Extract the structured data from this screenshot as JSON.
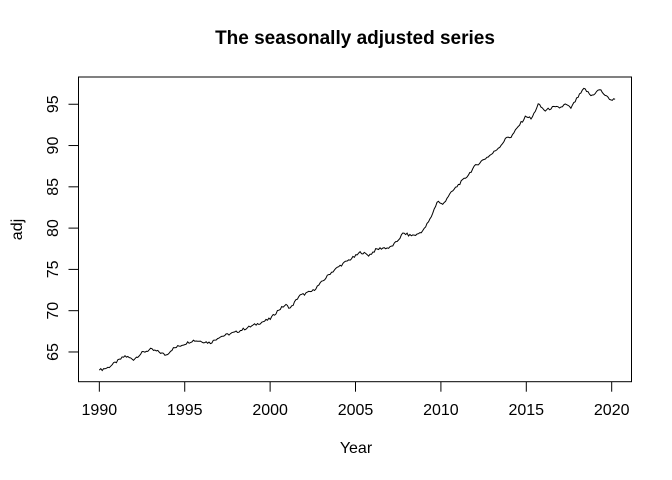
{
  "figure": {
    "title": "The seasonally adjusted series",
    "xlabel": "Year",
    "ylabel": "adj"
  },
  "chart_data": {
    "type": "line",
    "title": "The seasonally adjusted series",
    "xlabel": "Year",
    "ylabel": "adj",
    "x_ticks": [
      1990,
      1995,
      2000,
      2005,
      2010,
      2015,
      2020
    ],
    "y_ticks": [
      65,
      70,
      75,
      80,
      85,
      90,
      95
    ],
    "xlim": [
      1988.78,
      2021.16
    ],
    "ylim": [
      61.4,
      98.3
    ],
    "grid": false,
    "legend": false,
    "line_color": "#000000",
    "frame_color": "#000000",
    "background": "#ffffff",
    "resolution": "monthly",
    "noise_amplitude": 0.16,
    "series": [
      {
        "name": "adj",
        "x": [
          1990.0,
          1990.5,
          1991.0,
          1991.5,
          1992.0,
          1992.5,
          1993.0,
          1993.5,
          1993.9,
          1994.3,
          1995.0,
          1995.5,
          1996.0,
          1996.5,
          1997.0,
          1997.5,
          1998.0,
          1998.5,
          1999.0,
          1999.5,
          2000.0,
          2000.5,
          2000.9,
          2001.2,
          2001.7,
          2002.0,
          2002.5,
          2003.0,
          2003.5,
          2004.0,
          2004.5,
          2005.0,
          2005.3,
          2005.8,
          2006.2,
          2006.6,
          2007.0,
          2007.4,
          2007.8,
          2008.2,
          2008.6,
          2009.0,
          2009.4,
          2009.8,
          2010.1,
          2010.4,
          2011.0,
          2011.5,
          2012.0,
          2012.5,
          2013.0,
          2013.5,
          2013.9,
          2014.1,
          2014.6,
          2015.0,
          2015.3,
          2015.7,
          2016.1,
          2016.5,
          2017.0,
          2017.3,
          2017.6,
          2018.0,
          2018.4,
          2018.8,
          2019.3,
          2019.7,
          2020.0,
          2020.2
        ],
        "y": [
          62.8,
          63.1,
          63.8,
          64.5,
          64.1,
          64.9,
          65.3,
          65.0,
          64.6,
          65.4,
          66.0,
          66.4,
          66.3,
          66.1,
          66.8,
          67.1,
          67.4,
          67.8,
          68.2,
          68.6,
          69.0,
          70.1,
          70.7,
          70.3,
          71.8,
          72.0,
          72.4,
          73.4,
          74.5,
          75.3,
          76.0,
          76.6,
          77.1,
          76.7,
          77.4,
          77.6,
          77.6,
          78.3,
          79.4,
          79.1,
          79.2,
          79.8,
          81.2,
          83.3,
          82.8,
          83.8,
          85.2,
          86.2,
          87.5,
          88.3,
          89.0,
          90.0,
          91.1,
          91.0,
          92.5,
          93.6,
          93.2,
          95.0,
          94.2,
          94.6,
          94.6,
          95.0,
          94.5,
          95.8,
          96.9,
          96.0,
          96.8,
          95.9,
          95.5,
          95.6
        ]
      }
    ]
  }
}
